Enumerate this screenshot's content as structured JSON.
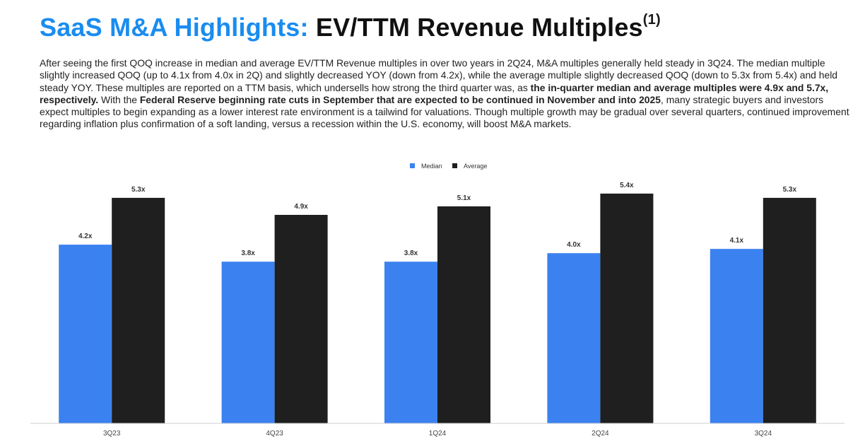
{
  "title": {
    "accent": "SaaS M&A Highlights:",
    "main": "EV/TTM Revenue Multiples",
    "footnote": "(1)"
  },
  "body": {
    "p1": "After seeing the first QOQ increase in median and average EV/TTM Revenue multiples in over two years in 2Q24, M&A multiples generally held steady in 3Q24. The median multiple slightly increased QOQ (up to 4.1x from 4.0x in 2Q) and slightly decreased YOY (down from 4.2x), while the average multiple slightly decreased QOQ (down to 5.3x from 5.4x) and held steady YOY. These multiples are reported on a TTM basis, which undersells how strong the third quarter was, as",
    "b1": "the in-quarter median and average multiples were 4.9x and 5.7x, respectively.",
    "p2": "With the",
    "b2": "Federal Reserve beginning rate cuts in September that are expected to be continued in November and into 2025",
    "p3": ", many strategic buyers and investors expect multiples to begin expanding as a lower interest rate environment is a tailwind for valuations. Though multiple growth may be gradual over several quarters, continued improvement regarding inflation plus confirmation of a soft landing, versus a recession within the U.S. economy, will boost M&A markets."
  },
  "colors": {
    "accent": "#1a8cf0",
    "median": "#3b82f0",
    "average": "#1f1f1f"
  },
  "chart_data": {
    "type": "bar",
    "categories": [
      "3Q23",
      "4Q23",
      "1Q24",
      "2Q24",
      "3Q24"
    ],
    "series": [
      {
        "name": "Median",
        "values": [
          4.2,
          3.8,
          3.8,
          4.0,
          4.1
        ],
        "labels": [
          "4.2x",
          "3.8x",
          "3.8x",
          "4.0x",
          "4.1x"
        ]
      },
      {
        "name": "Average",
        "values": [
          5.3,
          4.9,
          5.1,
          5.4,
          5.3
        ],
        "labels": [
          "5.3x",
          "4.9x",
          "5.1x",
          "5.4x",
          "5.3x"
        ]
      }
    ],
    "ylim": [
      0,
      5.7
    ],
    "grid": false,
    "legend": "top-center",
    "xlabel": "",
    "ylabel": ""
  }
}
